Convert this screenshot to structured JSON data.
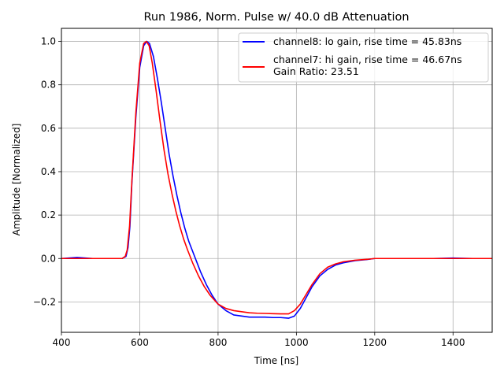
{
  "chart_data": {
    "type": "line",
    "title": "Run 1986, Norm. Pulse w/ 40.0 dB Attenuation",
    "xlabel": "Time [ns]",
    "ylabel": "Amplitude [Normalized]",
    "xlim": [
      400,
      1500
    ],
    "ylim": [
      -0.34,
      1.06
    ],
    "xticks": [
      400,
      600,
      800,
      1000,
      1200,
      1400
    ],
    "yticks": [
      -0.2,
      0.0,
      0.2,
      0.4,
      0.6,
      0.8,
      1.0
    ],
    "ytick_labels": [
      "−0.2",
      "0.0",
      "0.2",
      "0.4",
      "0.6",
      "0.8",
      "1.0"
    ],
    "grid": true,
    "legend_position": "top-right",
    "series": [
      {
        "name": "channel8: lo gain, rise time = 45.83ns",
        "color": "#0000ff",
        "points": [
          [
            400,
            0.0
          ],
          [
            440,
            0.005
          ],
          [
            480,
            0.0
          ],
          [
            520,
            0.0
          ],
          [
            555,
            0.0
          ],
          [
            565,
            0.01
          ],
          [
            570,
            0.05
          ],
          [
            575,
            0.15
          ],
          [
            580,
            0.35
          ],
          [
            590,
            0.65
          ],
          [
            600,
            0.88
          ],
          [
            610,
            0.98
          ],
          [
            618,
            1.0
          ],
          [
            625,
            0.99
          ],
          [
            635,
            0.93
          ],
          [
            645,
            0.83
          ],
          [
            655,
            0.72
          ],
          [
            665,
            0.6
          ],
          [
            675,
            0.48
          ],
          [
            685,
            0.38
          ],
          [
            695,
            0.29
          ],
          [
            705,
            0.21
          ],
          [
            715,
            0.14
          ],
          [
            725,
            0.08
          ],
          [
            740,
            0.01
          ],
          [
            755,
            -0.06
          ],
          [
            770,
            -0.12
          ],
          [
            785,
            -0.17
          ],
          [
            800,
            -0.21
          ],
          [
            820,
            -0.24
          ],
          [
            840,
            -0.26
          ],
          [
            860,
            -0.265
          ],
          [
            880,
            -0.27
          ],
          [
            900,
            -0.27
          ],
          [
            920,
            -0.27
          ],
          [
            940,
            -0.272
          ],
          [
            960,
            -0.272
          ],
          [
            980,
            -0.275
          ],
          [
            995,
            -0.265
          ],
          [
            1010,
            -0.23
          ],
          [
            1025,
            -0.18
          ],
          [
            1040,
            -0.13
          ],
          [
            1060,
            -0.08
          ],
          [
            1080,
            -0.05
          ],
          [
            1100,
            -0.03
          ],
          [
            1120,
            -0.02
          ],
          [
            1150,
            -0.01
          ],
          [
            1180,
            -0.005
          ],
          [
            1200,
            0.0
          ],
          [
            1250,
            0.0
          ],
          [
            1300,
            0.0
          ],
          [
            1350,
            0.0
          ],
          [
            1400,
            0.002
          ],
          [
            1450,
            0.0
          ],
          [
            1500,
            0.0
          ]
        ]
      },
      {
        "name": "channel7: hi gain, rise time = 46.67ns",
        "color": "#ff0000",
        "points": [
          [
            400,
            0.0
          ],
          [
            440,
            0.0
          ],
          [
            480,
            0.0
          ],
          [
            520,
            0.0
          ],
          [
            555,
            0.0
          ],
          [
            563,
            0.01
          ],
          [
            568,
            0.04
          ],
          [
            574,
            0.15
          ],
          [
            580,
            0.36
          ],
          [
            590,
            0.67
          ],
          [
            600,
            0.9
          ],
          [
            610,
            0.99
          ],
          [
            617,
            1.0
          ],
          [
            624,
            0.98
          ],
          [
            632,
            0.9
          ],
          [
            642,
            0.77
          ],
          [
            652,
            0.63
          ],
          [
            662,
            0.5
          ],
          [
            672,
            0.39
          ],
          [
            682,
            0.3
          ],
          [
            692,
            0.22
          ],
          [
            702,
            0.15
          ],
          [
            712,
            0.09
          ],
          [
            722,
            0.04
          ],
          [
            735,
            -0.02
          ],
          [
            750,
            -0.08
          ],
          [
            765,
            -0.13
          ],
          [
            780,
            -0.17
          ],
          [
            800,
            -0.21
          ],
          [
            820,
            -0.23
          ],
          [
            840,
            -0.24
          ],
          [
            860,
            -0.245
          ],
          [
            880,
            -0.25
          ],
          [
            900,
            -0.252
          ],
          [
            920,
            -0.253
          ],
          [
            940,
            -0.254
          ],
          [
            960,
            -0.255
          ],
          [
            980,
            -0.255
          ],
          [
            995,
            -0.24
          ],
          [
            1010,
            -0.21
          ],
          [
            1025,
            -0.165
          ],
          [
            1040,
            -0.12
          ],
          [
            1060,
            -0.07
          ],
          [
            1080,
            -0.04
          ],
          [
            1100,
            -0.025
          ],
          [
            1120,
            -0.015
          ],
          [
            1150,
            -0.008
          ],
          [
            1180,
            -0.004
          ],
          [
            1200,
            0.0
          ],
          [
            1250,
            0.0
          ],
          [
            1300,
            0.0
          ],
          [
            1350,
            0.0
          ],
          [
            1400,
            0.0
          ],
          [
            1450,
            0.0
          ],
          [
            1500,
            0.0
          ]
        ]
      }
    ],
    "legend_extra": "Gain Ratio: 23.51"
  }
}
